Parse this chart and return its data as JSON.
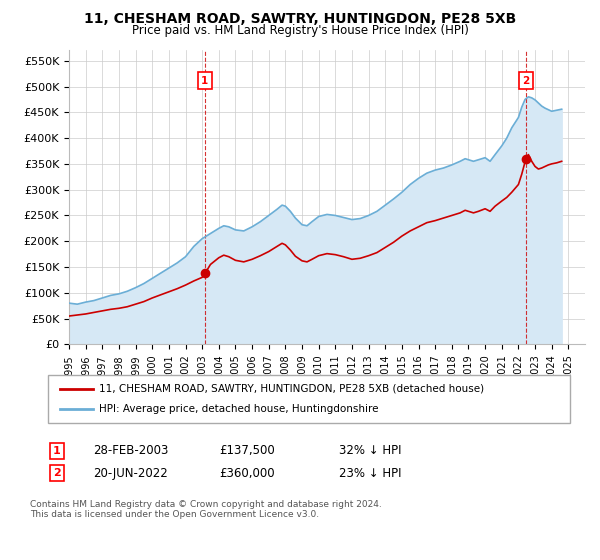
{
  "title": "11, CHESHAM ROAD, SAWTRY, HUNTINGDON, PE28 5XB",
  "subtitle": "Price paid vs. HM Land Registry's House Price Index (HPI)",
  "ylabel_ticks": [
    "£0",
    "£50K",
    "£100K",
    "£150K",
    "£200K",
    "£250K",
    "£300K",
    "£350K",
    "£400K",
    "£450K",
    "£500K",
    "£550K"
  ],
  "ytick_values": [
    0,
    50000,
    100000,
    150000,
    200000,
    250000,
    300000,
    350000,
    400000,
    450000,
    500000,
    550000
  ],
  "hpi_color": "#6baed6",
  "hpi_fill_color": "#d6e8f5",
  "price_color": "#cc0000",
  "marker1_date": "2003-02-28",
  "marker1_price": 137500,
  "marker2_date": "2022-06-20",
  "marker2_price": 360000,
  "legend_house_label": "11, CHESHAM ROAD, SAWTRY, HUNTINGDON, PE28 5XB (detached house)",
  "legend_hpi_label": "HPI: Average price, detached house, Huntingdonshire",
  "footer": "Contains HM Land Registry data © Crown copyright and database right 2024.\nThis data is licensed under the Open Government Licence v3.0.",
  "background_color": "#ffffff",
  "grid_color": "#cccccc",
  "hpi_key_points": [
    [
      1995.0,
      80000
    ],
    [
      1995.5,
      78000
    ],
    [
      1996.0,
      82000
    ],
    [
      1996.5,
      85000
    ],
    [
      1997.0,
      90000
    ],
    [
      1997.5,
      95000
    ],
    [
      1998.0,
      98000
    ],
    [
      1998.5,
      103000
    ],
    [
      1999.0,
      110000
    ],
    [
      1999.5,
      118000
    ],
    [
      2000.0,
      128000
    ],
    [
      2000.5,
      138000
    ],
    [
      2001.0,
      148000
    ],
    [
      2001.5,
      158000
    ],
    [
      2002.0,
      170000
    ],
    [
      2002.5,
      190000
    ],
    [
      2003.0,
      205000
    ],
    [
      2003.5,
      215000
    ],
    [
      2004.0,
      225000
    ],
    [
      2004.3,
      230000
    ],
    [
      2004.6,
      228000
    ],
    [
      2005.0,
      222000
    ],
    [
      2005.5,
      220000
    ],
    [
      2006.0,
      228000
    ],
    [
      2006.5,
      238000
    ],
    [
      2007.0,
      250000
    ],
    [
      2007.5,
      262000
    ],
    [
      2007.8,
      270000
    ],
    [
      2008.0,
      268000
    ],
    [
      2008.3,
      258000
    ],
    [
      2008.6,
      245000
    ],
    [
      2009.0,
      232000
    ],
    [
      2009.3,
      230000
    ],
    [
      2009.6,
      238000
    ],
    [
      2010.0,
      248000
    ],
    [
      2010.5,
      252000
    ],
    [
      2011.0,
      250000
    ],
    [
      2011.5,
      246000
    ],
    [
      2012.0,
      242000
    ],
    [
      2012.5,
      244000
    ],
    [
      2013.0,
      250000
    ],
    [
      2013.5,
      258000
    ],
    [
      2014.0,
      270000
    ],
    [
      2014.5,
      282000
    ],
    [
      2015.0,
      295000
    ],
    [
      2015.5,
      310000
    ],
    [
      2016.0,
      322000
    ],
    [
      2016.5,
      332000
    ],
    [
      2017.0,
      338000
    ],
    [
      2017.5,
      342000
    ],
    [
      2018.0,
      348000
    ],
    [
      2018.5,
      355000
    ],
    [
      2018.8,
      360000
    ],
    [
      2019.0,
      358000
    ],
    [
      2019.3,
      355000
    ],
    [
      2019.6,
      358000
    ],
    [
      2020.0,
      362000
    ],
    [
      2020.3,
      355000
    ],
    [
      2020.6,
      368000
    ],
    [
      2021.0,
      385000
    ],
    [
      2021.3,
      400000
    ],
    [
      2021.6,
      420000
    ],
    [
      2022.0,
      440000
    ],
    [
      2022.2,
      460000
    ],
    [
      2022.4,
      475000
    ],
    [
      2022.6,
      480000
    ],
    [
      2022.8,
      478000
    ],
    [
      2023.0,
      474000
    ],
    [
      2023.2,
      468000
    ],
    [
      2023.4,
      462000
    ],
    [
      2023.6,
      458000
    ],
    [
      2023.8,
      455000
    ],
    [
      2024.0,
      452000
    ],
    [
      2024.3,
      454000
    ],
    [
      2024.6,
      456000
    ]
  ],
  "price_key_points": [
    [
      1995.0,
      55000
    ],
    [
      1995.5,
      57000
    ],
    [
      1996.0,
      59000
    ],
    [
      1996.5,
      62000
    ],
    [
      1997.0,
      65000
    ],
    [
      1997.5,
      68000
    ],
    [
      1998.0,
      70000
    ],
    [
      1998.5,
      73000
    ],
    [
      1999.0,
      78000
    ],
    [
      1999.5,
      83000
    ],
    [
      2000.0,
      90000
    ],
    [
      2000.5,
      96000
    ],
    [
      2001.0,
      102000
    ],
    [
      2001.5,
      108000
    ],
    [
      2002.0,
      115000
    ],
    [
      2002.5,
      123000
    ],
    [
      2003.0,
      130000
    ],
    [
      2003.17,
      137500
    ],
    [
      2003.5,
      155000
    ],
    [
      2004.0,
      168000
    ],
    [
      2004.3,
      173000
    ],
    [
      2004.6,
      170000
    ],
    [
      2005.0,
      163000
    ],
    [
      2005.5,
      160000
    ],
    [
      2006.0,
      165000
    ],
    [
      2006.5,
      172000
    ],
    [
      2007.0,
      180000
    ],
    [
      2007.5,
      190000
    ],
    [
      2007.8,
      196000
    ],
    [
      2008.0,
      193000
    ],
    [
      2008.3,
      183000
    ],
    [
      2008.6,
      171000
    ],
    [
      2009.0,
      162000
    ],
    [
      2009.3,
      160000
    ],
    [
      2009.6,
      165000
    ],
    [
      2010.0,
      172000
    ],
    [
      2010.5,
      176000
    ],
    [
      2011.0,
      174000
    ],
    [
      2011.5,
      170000
    ],
    [
      2012.0,
      165000
    ],
    [
      2012.5,
      167000
    ],
    [
      2013.0,
      172000
    ],
    [
      2013.5,
      178000
    ],
    [
      2014.0,
      188000
    ],
    [
      2014.5,
      198000
    ],
    [
      2015.0,
      210000
    ],
    [
      2015.5,
      220000
    ],
    [
      2016.0,
      228000
    ],
    [
      2016.5,
      236000
    ],
    [
      2017.0,
      240000
    ],
    [
      2017.5,
      245000
    ],
    [
      2018.0,
      250000
    ],
    [
      2018.5,
      255000
    ],
    [
      2018.8,
      260000
    ],
    [
      2019.0,
      258000
    ],
    [
      2019.3,
      255000
    ],
    [
      2019.6,
      258000
    ],
    [
      2020.0,
      263000
    ],
    [
      2020.3,
      258000
    ],
    [
      2020.6,
      268000
    ],
    [
      2021.0,
      278000
    ],
    [
      2021.3,
      285000
    ],
    [
      2021.6,
      295000
    ],
    [
      2022.0,
      310000
    ],
    [
      2022.2,
      330000
    ],
    [
      2022.45,
      360000
    ],
    [
      2022.6,
      368000
    ],
    [
      2022.8,
      355000
    ],
    [
      2023.0,
      345000
    ],
    [
      2023.2,
      340000
    ],
    [
      2023.4,
      342000
    ],
    [
      2023.6,
      345000
    ],
    [
      2023.8,
      348000
    ],
    [
      2024.0,
      350000
    ],
    [
      2024.3,
      352000
    ],
    [
      2024.6,
      355000
    ]
  ]
}
